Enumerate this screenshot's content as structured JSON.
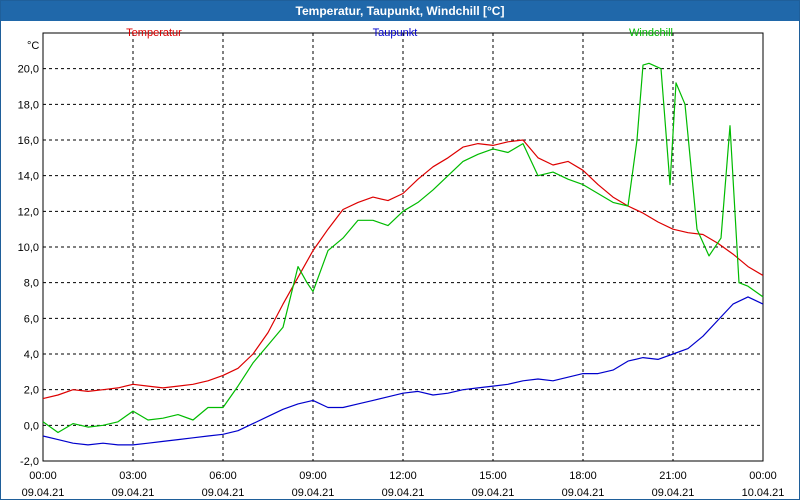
{
  "window": {
    "title": "Temperatur, Taupunkt, Windchill [°C]"
  },
  "chart_data": {
    "type": "line",
    "title": "Temperatur, Taupunkt, Windchill [°C]",
    "ylabel": "°C",
    "ylim": [
      -2,
      22
    ],
    "xlim": [
      0,
      24
    ],
    "grid": true,
    "yticks": [
      {
        "value": -2,
        "label": "-2,0"
      },
      {
        "value": 0,
        "label": "0,0"
      },
      {
        "value": 2,
        "label": "2,0"
      },
      {
        "value": 4,
        "label": "4,0"
      },
      {
        "value": 6,
        "label": "6,0"
      },
      {
        "value": 8,
        "label": "8,0"
      },
      {
        "value": 10,
        "label": "10,0"
      },
      {
        "value": 12,
        "label": "12,0"
      },
      {
        "value": 14,
        "label": "14,0"
      },
      {
        "value": 16,
        "label": "16,0"
      },
      {
        "value": 18,
        "label": "18,0"
      },
      {
        "value": 20,
        "label": "20,0"
      }
    ],
    "xticks": [
      {
        "value": 0,
        "time": "00:00",
        "date": "09.04.21"
      },
      {
        "value": 3,
        "time": "03:00",
        "date": "09.04.21"
      },
      {
        "value": 6,
        "time": "06:00",
        "date": "09.04.21"
      },
      {
        "value": 9,
        "time": "09:00",
        "date": "09.04.21"
      },
      {
        "value": 12,
        "time": "12:00",
        "date": "09.04.21"
      },
      {
        "value": 15,
        "time": "15:00",
        "date": "09.04.21"
      },
      {
        "value": 18,
        "time": "18:00",
        "date": "09.04.21"
      },
      {
        "value": 21,
        "time": "21:00",
        "date": "09.04.21"
      },
      {
        "value": 24,
        "time": "00:00",
        "date": "10.04.21"
      }
    ],
    "series": [
      {
        "name": "Temperatur",
        "color": "#dd0000",
        "x": [
          0,
          0.5,
          1,
          1.5,
          2,
          2.5,
          3,
          3.5,
          4,
          4.5,
          5,
          5.5,
          6,
          6.5,
          7,
          7.5,
          8,
          8.5,
          9,
          9.5,
          10,
          10.5,
          11,
          11.5,
          12,
          12.5,
          13,
          13.5,
          14,
          14.5,
          15,
          15.5,
          16,
          16.5,
          17,
          17.5,
          18,
          18.5,
          19,
          19.5,
          20,
          20.5,
          21,
          21.5,
          22,
          22.5,
          23,
          23.5,
          24
        ],
        "values": [
          1.5,
          1.7,
          2.0,
          1.9,
          2.0,
          2.1,
          2.3,
          2.2,
          2.1,
          2.2,
          2.3,
          2.5,
          2.8,
          3.2,
          4.0,
          5.2,
          6.8,
          8.3,
          9.8,
          11.0,
          12.1,
          12.5,
          12.8,
          12.6,
          13.0,
          13.8,
          14.5,
          15.0,
          15.6,
          15.8,
          15.7,
          15.9,
          16.0,
          15.0,
          14.6,
          14.8,
          14.3,
          13.5,
          12.8,
          12.3,
          11.9,
          11.4,
          11.0,
          10.8,
          10.7,
          10.2,
          9.6,
          8.9,
          8.4
        ]
      },
      {
        "name": "Taupunkt",
        "color": "#0000cc",
        "x": [
          0,
          0.5,
          1,
          1.5,
          2,
          2.5,
          3,
          3.5,
          4,
          4.5,
          5,
          5.5,
          6,
          6.5,
          7,
          7.5,
          8,
          8.5,
          9,
          9.5,
          10,
          10.5,
          11,
          11.5,
          12,
          12.5,
          13,
          13.5,
          14,
          14.5,
          15,
          15.5,
          16,
          16.5,
          17,
          17.5,
          18,
          18.5,
          19,
          19.5,
          20,
          20.5,
          21,
          21.5,
          22,
          22.5,
          23,
          23.5,
          24
        ],
        "values": [
          -0.6,
          -0.8,
          -1.0,
          -1.1,
          -1.0,
          -1.1,
          -1.1,
          -1.0,
          -0.9,
          -0.8,
          -0.7,
          -0.6,
          -0.5,
          -0.3,
          0.1,
          0.5,
          0.9,
          1.2,
          1.4,
          1.0,
          1.0,
          1.2,
          1.4,
          1.6,
          1.8,
          1.9,
          1.7,
          1.8,
          2.0,
          2.1,
          2.2,
          2.3,
          2.5,
          2.6,
          2.5,
          2.7,
          2.9,
          2.9,
          3.1,
          3.6,
          3.8,
          3.7,
          4.0,
          4.3,
          5.0,
          5.9,
          6.8,
          7.2,
          6.8
        ]
      },
      {
        "name": "Windchill",
        "color": "#00bb00",
        "x": [
          0,
          0.5,
          1,
          1.5,
          2,
          2.5,
          3,
          3.5,
          4,
          4.5,
          5,
          5.5,
          6,
          6.5,
          7,
          7.5,
          8,
          8.5,
          8.8,
          9,
          9.5,
          10,
          10.5,
          11,
          11.5,
          12,
          12.5,
          13,
          13.5,
          14,
          14.5,
          15,
          15.5,
          16,
          16.5,
          17,
          17.5,
          18,
          18.5,
          19,
          19.5,
          19.8,
          20,
          20.2,
          20.6,
          20.9,
          21.1,
          21.4,
          21.8,
          22.2,
          22.6,
          22.9,
          23.2,
          23.5,
          24
        ],
        "values": [
          0.2,
          -0.4,
          0.1,
          -0.1,
          0.0,
          0.2,
          0.8,
          0.3,
          0.4,
          0.6,
          0.3,
          1.0,
          1.0,
          2.2,
          3.5,
          4.5,
          5.5,
          8.9,
          8.0,
          7.5,
          9.8,
          10.5,
          11.5,
          11.5,
          11.2,
          12.0,
          12.5,
          13.2,
          14.0,
          14.8,
          15.2,
          15.5,
          15.3,
          15.8,
          14.0,
          14.2,
          13.8,
          13.5,
          13.0,
          12.5,
          12.3,
          16.0,
          20.2,
          20.3,
          20.0,
          13.5,
          19.2,
          18.0,
          11.0,
          9.5,
          10.5,
          16.8,
          8.0,
          7.8,
          7.2
        ]
      }
    ]
  }
}
